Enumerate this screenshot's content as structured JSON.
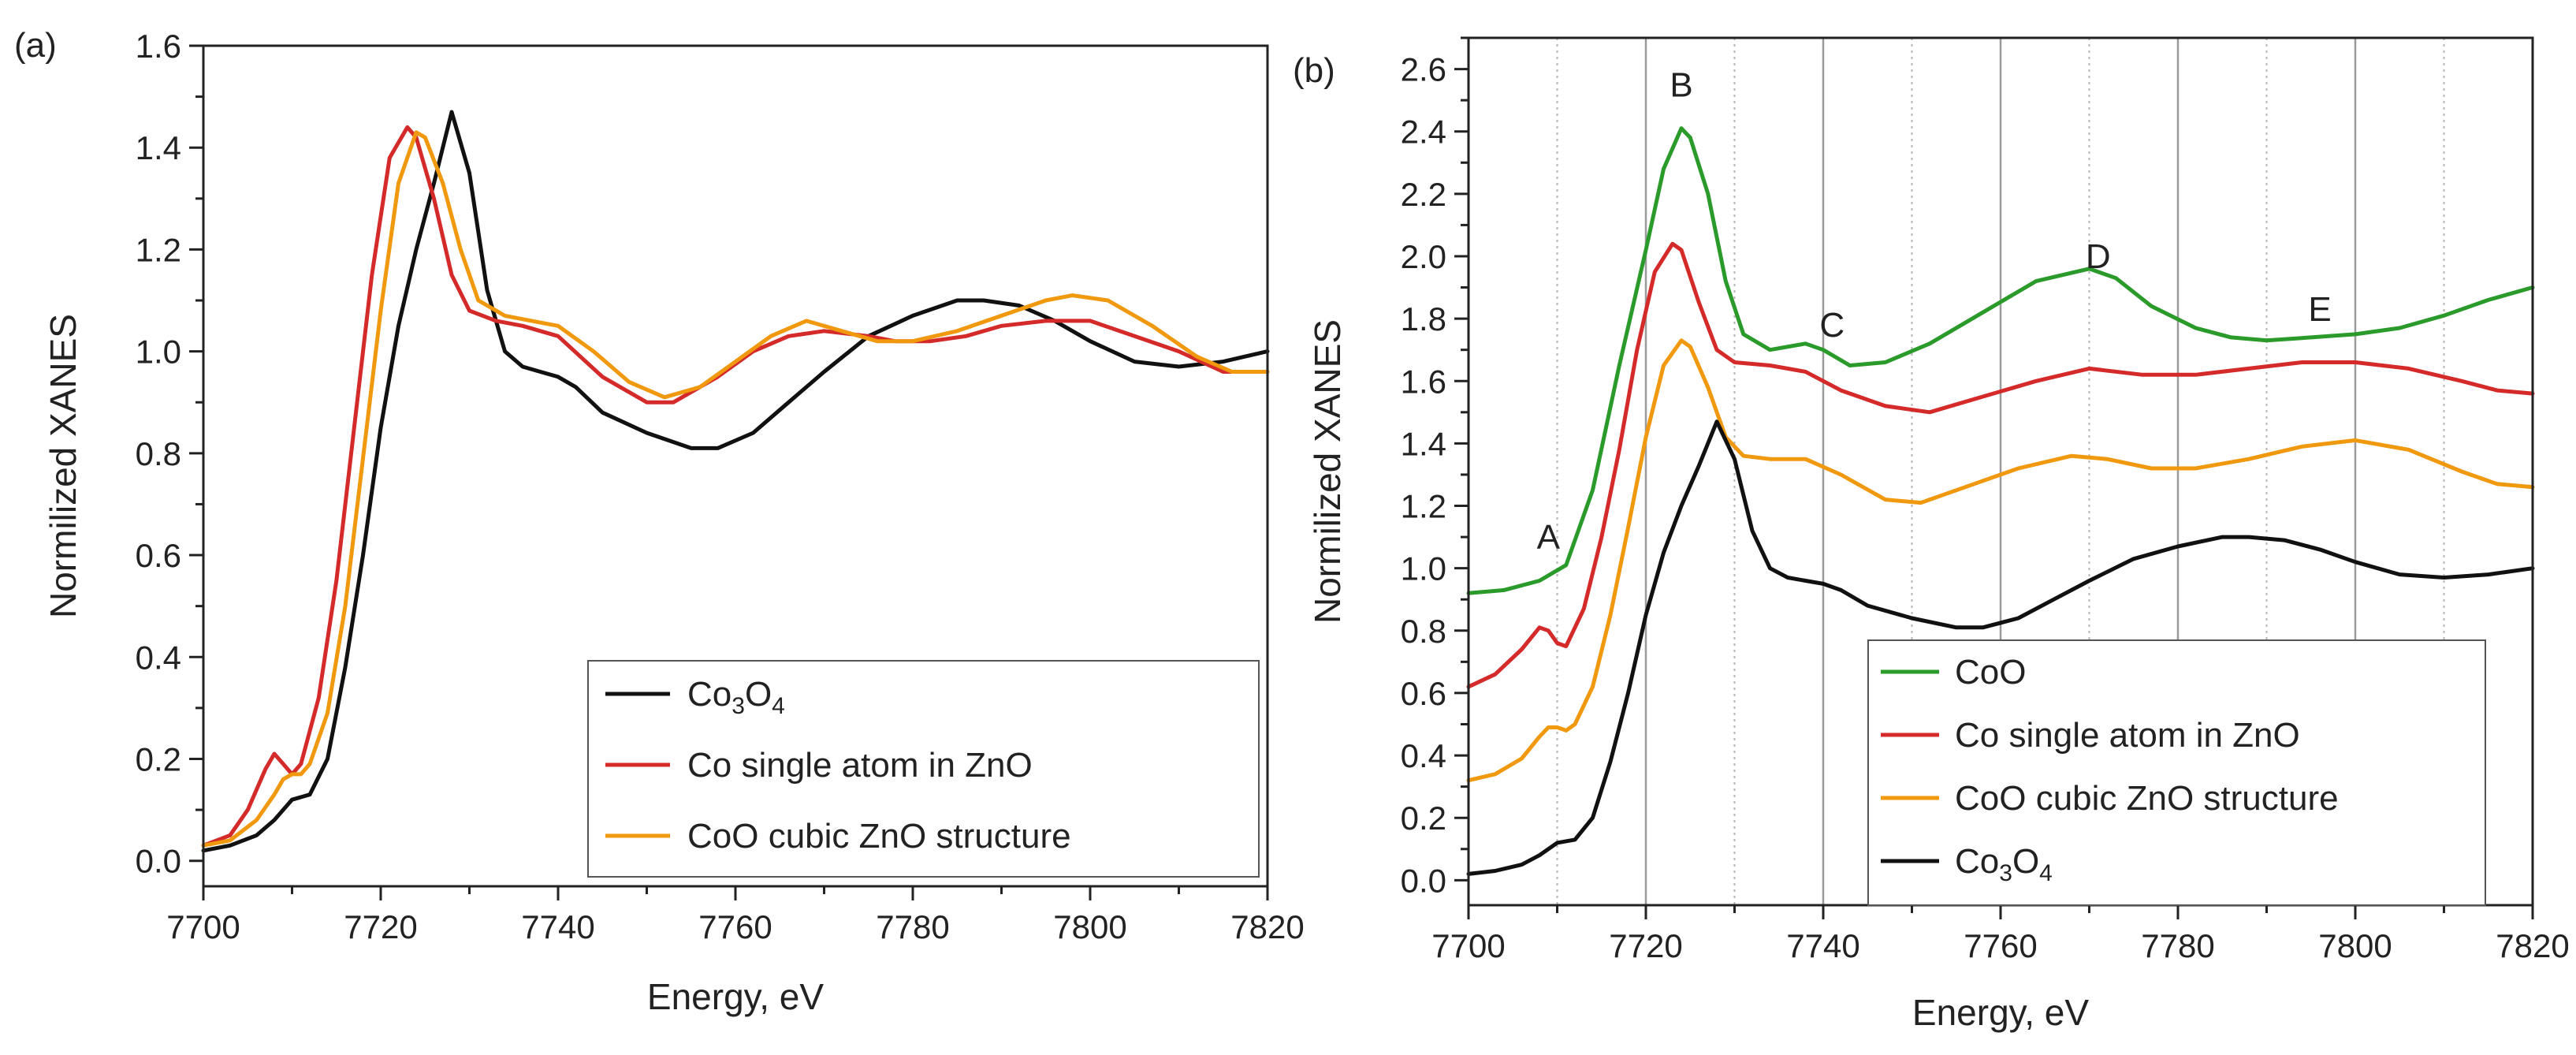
{
  "chart_data": [
    {
      "type": "line",
      "panel_label": "(a)",
      "xlabel": "Energy, eV",
      "ylabel": "Normilized XANES",
      "xlim": [
        7700,
        7820
      ],
      "ylim": [
        -0.05,
        1.6
      ],
      "xticks": [
        "7700",
        "7720",
        "7740",
        "7760",
        "7780",
        "7800",
        "7820"
      ],
      "yticks": [
        "0.0",
        "0.2",
        "0.4",
        "0.6",
        "0.8",
        "1.0",
        "1.2",
        "1.4",
        "1.6"
      ],
      "grid": false,
      "legend_position": "bottom-right",
      "series": [
        {
          "name": "Co3O4",
          "legend_main": "Co",
          "legend_sub1": "3",
          "legend_mid": "O",
          "legend_sub2": "4",
          "color": "#111111",
          "x": [
            7700,
            7703,
            7706,
            7708,
            7710,
            7712,
            7714,
            7716,
            7718,
            7720,
            7722,
            7724,
            7726,
            7728,
            7730,
            7732,
            7734,
            7736,
            7738,
            7740,
            7742,
            7745,
            7750,
            7755,
            7758,
            7762,
            7766,
            7770,
            7775,
            7780,
            7785,
            7788,
            7792,
            7796,
            7800,
            7805,
            7810,
            7815,
            7820
          ],
          "y": [
            0.02,
            0.03,
            0.05,
            0.08,
            0.12,
            0.13,
            0.2,
            0.38,
            0.6,
            0.85,
            1.05,
            1.2,
            1.33,
            1.47,
            1.35,
            1.12,
            1.0,
            0.97,
            0.96,
            0.95,
            0.93,
            0.88,
            0.84,
            0.81,
            0.81,
            0.84,
            0.9,
            0.96,
            1.03,
            1.07,
            1.1,
            1.1,
            1.09,
            1.06,
            1.02,
            0.98,
            0.97,
            0.98,
            1.0
          ]
        },
        {
          "name": "Co single atom in ZnO",
          "color": "#d42a2a",
          "x": [
            7700,
            7703,
            7705,
            7707,
            7708,
            7709,
            7710,
            7711,
            7713,
            7715,
            7717,
            7719,
            7721,
            7723,
            7724,
            7726,
            7728,
            7730,
            7733,
            7736,
            7740,
            7745,
            7750,
            7753,
            7758,
            7762,
            7766,
            7770,
            7775,
            7778,
            7782,
            7786,
            7790,
            7795,
            7800,
            7805,
            7810,
            7815,
            7820
          ],
          "y": [
            0.03,
            0.05,
            0.1,
            0.18,
            0.21,
            0.19,
            0.17,
            0.19,
            0.32,
            0.55,
            0.85,
            1.15,
            1.38,
            1.44,
            1.42,
            1.3,
            1.15,
            1.08,
            1.06,
            1.05,
            1.03,
            0.95,
            0.9,
            0.9,
            0.95,
            1.0,
            1.03,
            1.04,
            1.03,
            1.02,
            1.02,
            1.03,
            1.05,
            1.06,
            1.06,
            1.03,
            1.0,
            0.96,
            0.96
          ]
        },
        {
          "name": "CoO cubic ZnO structure",
          "color": "#f0980e",
          "x": [
            7700,
            7703,
            7706,
            7708,
            7709,
            7710,
            7711,
            7712,
            7714,
            7716,
            7718,
            7720,
            7722,
            7724,
            7725,
            7727,
            7729,
            7731,
            7734,
            7737,
            7740,
            7744,
            7748,
            7752,
            7756,
            7760,
            7764,
            7768,
            7772,
            7776,
            7780,
            7785,
            7790,
            7795,
            7798,
            7802,
            7807,
            7812,
            7816,
            7820
          ],
          "y": [
            0.03,
            0.04,
            0.08,
            0.13,
            0.16,
            0.17,
            0.17,
            0.19,
            0.29,
            0.5,
            0.79,
            1.08,
            1.33,
            1.43,
            1.42,
            1.33,
            1.2,
            1.1,
            1.07,
            1.06,
            1.05,
            1.0,
            0.94,
            0.91,
            0.93,
            0.98,
            1.03,
            1.06,
            1.04,
            1.02,
            1.02,
            1.04,
            1.07,
            1.1,
            1.11,
            1.1,
            1.05,
            0.99,
            0.96,
            0.96
          ]
        }
      ]
    },
    {
      "type": "line",
      "panel_label": "(b)",
      "xlabel": "Energy, eV",
      "ylabel": "Normilized XANES",
      "xlim": [
        7700,
        7820
      ],
      "ylim": [
        -0.08,
        2.7
      ],
      "xticks": [
        "7700",
        "7720",
        "7740",
        "7760",
        "7780",
        "7800",
        "7820"
      ],
      "yticks": [
        "0.0",
        "0.2",
        "0.4",
        "0.6",
        "0.8",
        "1.0",
        "1.2",
        "1.4",
        "1.6",
        "1.8",
        "2.0",
        "2.2",
        "2.4",
        "2.6"
      ],
      "grid": true,
      "grid_solid_x": [
        7720,
        7740,
        7760,
        7780,
        7800
      ],
      "grid_dotted_x": [
        7710,
        7730,
        7750,
        7770,
        7790,
        7810
      ],
      "legend_position": "bottom-left",
      "annotations": [
        {
          "text": "A",
          "x": 7709,
          "y": 1.1
        },
        {
          "text": "B",
          "x": 7724,
          "y": 2.55
        },
        {
          "text": "C",
          "x": 7741,
          "y": 1.78
        },
        {
          "text": "D",
          "x": 7771,
          "y": 2.0
        },
        {
          "text": "E",
          "x": 7796,
          "y": 1.83
        }
      ],
      "series": [
        {
          "name": "CoO",
          "color": "#2a9a2a",
          "x": [
            7700,
            7704,
            7708,
            7711,
            7714,
            7717,
            7720,
            7722,
            7724,
            7725,
            7727,
            7729,
            7731,
            7734,
            7738,
            7740,
            7743,
            7747,
            7752,
            7758,
            7764,
            7770,
            7773,
            7777,
            7782,
            7786,
            7790,
            7795,
            7800,
            7805,
            7810,
            7815,
            7820
          ],
          "y": [
            0.92,
            0.93,
            0.96,
            1.01,
            1.25,
            1.65,
            2.02,
            2.28,
            2.41,
            2.38,
            2.2,
            1.92,
            1.75,
            1.7,
            1.72,
            1.7,
            1.65,
            1.66,
            1.72,
            1.82,
            1.92,
            1.96,
            1.93,
            1.84,
            1.77,
            1.74,
            1.73,
            1.74,
            1.75,
            1.77,
            1.81,
            1.86,
            1.9
          ]
        },
        {
          "name": "Co single atom in ZnO",
          "color": "#d42a2a",
          "x": [
            7700,
            7703,
            7706,
            7708,
            7709,
            7710,
            7711,
            7713,
            7715,
            7717,
            7719,
            7721,
            7723,
            7724,
            7726,
            7728,
            7730,
            7734,
            7738,
            7742,
            7747,
            7752,
            7758,
            7764,
            7770,
            7776,
            7782,
            7788,
            7794,
            7800,
            7806,
            7812,
            7816,
            7820
          ],
          "y": [
            0.62,
            0.66,
            0.74,
            0.81,
            0.8,
            0.76,
            0.75,
            0.87,
            1.1,
            1.38,
            1.7,
            1.95,
            2.04,
            2.02,
            1.85,
            1.7,
            1.66,
            1.65,
            1.63,
            1.57,
            1.52,
            1.5,
            1.55,
            1.6,
            1.64,
            1.62,
            1.62,
            1.64,
            1.66,
            1.66,
            1.64,
            1.6,
            1.57,
            1.56
          ]
        },
        {
          "name": "CoO cubic ZnO structure",
          "color": "#f0980e",
          "x": [
            7700,
            7703,
            7706,
            7708,
            7709,
            7710,
            7711,
            7712,
            7714,
            7716,
            7718,
            7720,
            7722,
            7724,
            7725,
            7727,
            7729,
            7731,
            7734,
            7738,
            7742,
            7747,
            7751,
            7756,
            7762,
            7768,
            7772,
            7777,
            7782,
            7788,
            7794,
            7800,
            7806,
            7812,
            7816,
            7820
          ],
          "y": [
            0.32,
            0.34,
            0.39,
            0.46,
            0.49,
            0.49,
            0.48,
            0.5,
            0.62,
            0.85,
            1.13,
            1.42,
            1.65,
            1.73,
            1.71,
            1.58,
            1.42,
            1.36,
            1.35,
            1.35,
            1.3,
            1.22,
            1.21,
            1.26,
            1.32,
            1.36,
            1.35,
            1.32,
            1.32,
            1.35,
            1.39,
            1.41,
            1.38,
            1.31,
            1.27,
            1.26
          ]
        },
        {
          "name": "Co3O4",
          "legend_main": "Co",
          "legend_sub1": "3",
          "legend_mid": "O",
          "legend_sub2": "4",
          "color": "#111111",
          "x": [
            7700,
            7703,
            7706,
            7708,
            7710,
            7712,
            7714,
            7716,
            7718,
            7720,
            7722,
            7724,
            7726,
            7728,
            7730,
            7732,
            7734,
            7736,
            7738,
            7740,
            7742,
            7745,
            7750,
            7755,
            7758,
            7762,
            7766,
            7770,
            7775,
            7780,
            7785,
            7788,
            7792,
            7796,
            7800,
            7805,
            7810,
            7815,
            7820
          ],
          "y": [
            0.02,
            0.03,
            0.05,
            0.08,
            0.12,
            0.13,
            0.2,
            0.38,
            0.6,
            0.85,
            1.05,
            1.2,
            1.33,
            1.47,
            1.35,
            1.12,
            1.0,
            0.97,
            0.96,
            0.95,
            0.93,
            0.88,
            0.84,
            0.81,
            0.81,
            0.84,
            0.9,
            0.96,
            1.03,
            1.07,
            1.1,
            1.1,
            1.09,
            1.06,
            1.02,
            0.98,
            0.97,
            0.98,
            1.0
          ]
        }
      ]
    }
  ]
}
